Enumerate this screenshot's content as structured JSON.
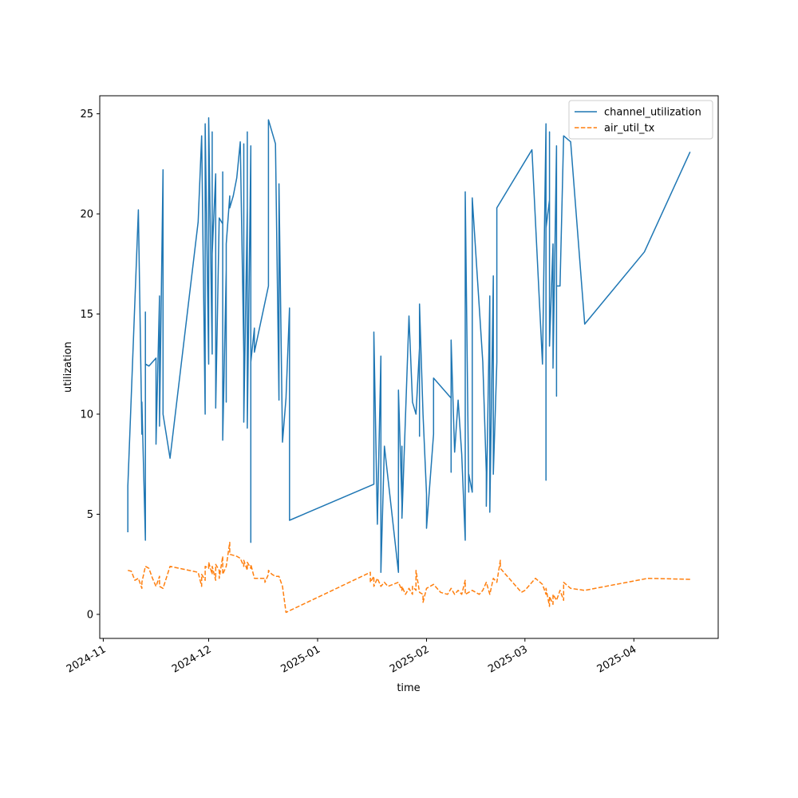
{
  "chart_data": {
    "type": "line",
    "title": "",
    "xlabel": "time",
    "ylabel": "utilization",
    "x_ticks": [
      "2024-11",
      "2024-12",
      "2025-01",
      "2025-02",
      "2025-03",
      "2025-04"
    ],
    "y_ticks": [
      "0",
      "5",
      "10",
      "15",
      "20",
      "25"
    ],
    "xlim": [
      "2024-10-31",
      "2025-04-25"
    ],
    "ylim": [
      -1.2,
      25.9
    ],
    "grid": false,
    "legend_position": "top-right",
    "series": [
      {
        "name": "channel_utilization",
        "color": "#1f77b4",
        "style": "solid",
        "points": [
          [
            "2024-11-08",
            4.1
          ],
          [
            "2024-11-08",
            6.4
          ],
          [
            "2024-11-11",
            20.2
          ],
          [
            "2024-11-12",
            9.0
          ],
          [
            "2024-11-12",
            10.6
          ],
          [
            "2024-11-13",
            3.7
          ],
          [
            "2024-11-13",
            3.8
          ],
          [
            "2024-11-13",
            15.1
          ],
          [
            "2024-11-13",
            12.5
          ],
          [
            "2024-11-14",
            12.4
          ],
          [
            "2024-11-16",
            12.8
          ],
          [
            "2024-11-16",
            8.5
          ],
          [
            "2024-11-17",
            15.9
          ],
          [
            "2024-11-17",
            9.4
          ],
          [
            "2024-11-18",
            22.2
          ],
          [
            "2024-11-18",
            10.0
          ],
          [
            "2024-11-20",
            7.8
          ],
          [
            "2024-11-28",
            19.6
          ],
          [
            "2024-11-29",
            23.9
          ],
          [
            "2024-11-30",
            10.0
          ],
          [
            "2024-11-30",
            24.5
          ],
          [
            "2024-12-01",
            12.5
          ],
          [
            "2024-12-01",
            24.8
          ],
          [
            "2024-12-02",
            13.0
          ],
          [
            "2024-12-02",
            24.1
          ],
          [
            "2024-12-02",
            18.0
          ],
          [
            "2024-12-03",
            22.0
          ],
          [
            "2024-12-03",
            15.5
          ],
          [
            "2024-12-03",
            21.8
          ],
          [
            "2024-12-03",
            10.3
          ],
          [
            "2024-12-04",
            19.8
          ],
          [
            "2024-12-05",
            19.5
          ],
          [
            "2024-12-05",
            10.5
          ],
          [
            "2024-12-05",
            22.1
          ],
          [
            "2024-12-05",
            8.7
          ],
          [
            "2024-12-06",
            17.2
          ],
          [
            "2024-12-06",
            17.4
          ],
          [
            "2024-12-06",
            10.6
          ],
          [
            "2024-12-06",
            18.5
          ],
          [
            "2024-12-07",
            20.9
          ],
          [
            "2024-12-07",
            20.3
          ],
          [
            "2024-12-08",
            20.9
          ],
          [
            "2024-12-09",
            21.8
          ],
          [
            "2024-12-10",
            23.6
          ],
          [
            "2024-12-11",
            13.0
          ],
          [
            "2024-12-11",
            23.5
          ],
          [
            "2024-12-11",
            9.6
          ],
          [
            "2024-12-12",
            20.3
          ],
          [
            "2024-12-12",
            14.7
          ],
          [
            "2024-12-12",
            24.1
          ],
          [
            "2024-12-12",
            9.3
          ],
          [
            "2024-12-13",
            23.3
          ],
          [
            "2024-12-13",
            3.6
          ],
          [
            "2024-12-13",
            23.4
          ],
          [
            "2024-12-13",
            12.6
          ],
          [
            "2024-12-14",
            14.3
          ],
          [
            "2024-12-14",
            13.1
          ],
          [
            "2024-12-18",
            16.4
          ],
          [
            "2024-12-18",
            24.7
          ],
          [
            "2024-12-20",
            23.5
          ],
          [
            "2024-12-21",
            10.7
          ],
          [
            "2024-12-21",
            21.5
          ],
          [
            "2024-12-22",
            8.6
          ],
          [
            "2024-12-23",
            10.8
          ],
          [
            "2024-12-24",
            15.3
          ],
          [
            "2024-12-24",
            4.7
          ],
          [
            "2025-01-17",
            6.5
          ],
          [
            "2025-01-17",
            14.1
          ],
          [
            "2025-01-18",
            4.5
          ],
          [
            "2025-01-19",
            12.9
          ],
          [
            "2025-01-19",
            2.1
          ],
          [
            "2025-01-20",
            8.4
          ],
          [
            "2025-01-24",
            2.1
          ],
          [
            "2025-01-24",
            11.2
          ],
          [
            "2025-01-25",
            5.5
          ],
          [
            "2025-01-25",
            8.4
          ],
          [
            "2025-01-25",
            4.8
          ],
          [
            "2025-01-27",
            14.9
          ],
          [
            "2025-01-28",
            10.6
          ],
          [
            "2025-01-29",
            10.0
          ],
          [
            "2025-01-30",
            13.3
          ],
          [
            "2025-01-30",
            8.9
          ],
          [
            "2025-01-30",
            15.5
          ],
          [
            "2025-01-31",
            10.0
          ],
          [
            "2025-02-01",
            6.0
          ],
          [
            "2025-02-01",
            4.3
          ],
          [
            "2025-02-03",
            9.0
          ],
          [
            "2025-02-03",
            11.8
          ],
          [
            "2025-02-07",
            11.0
          ],
          [
            "2025-02-08",
            10.8
          ],
          [
            "2025-02-08",
            7.1
          ],
          [
            "2025-02-08",
            13.7
          ],
          [
            "2025-02-09",
            8.1
          ],
          [
            "2025-02-10",
            10.7
          ],
          [
            "2025-02-11",
            8.0
          ],
          [
            "2025-02-12",
            3.7
          ],
          [
            "2025-02-12",
            21.1
          ],
          [
            "2025-02-13",
            6.1
          ],
          [
            "2025-02-13",
            7.0
          ],
          [
            "2025-02-14",
            6.1
          ],
          [
            "2025-02-14",
            20.8
          ],
          [
            "2025-02-17",
            12.6
          ],
          [
            "2025-02-18",
            7.1
          ],
          [
            "2025-02-18",
            5.4
          ],
          [
            "2025-02-19",
            15.9
          ],
          [
            "2025-02-19",
            5.1
          ],
          [
            "2025-02-20",
            16.9
          ],
          [
            "2025-02-20",
            7.0
          ],
          [
            "2025-02-21",
            12.6
          ],
          [
            "2025-02-21",
            19.4
          ],
          [
            "2025-02-21",
            18.6
          ],
          [
            "2025-02-21",
            20.3
          ],
          [
            "2025-03-03",
            23.2
          ],
          [
            "2025-03-06",
            12.5
          ],
          [
            "2025-03-07",
            24.5
          ],
          [
            "2025-03-07",
            6.7
          ],
          [
            "2025-03-07",
            19.3
          ],
          [
            "2025-03-08",
            20.7
          ],
          [
            "2025-03-08",
            15.3
          ],
          [
            "2025-03-08",
            24.1
          ],
          [
            "2025-03-08",
            13.4
          ],
          [
            "2025-03-09",
            18.5
          ],
          [
            "2025-03-09",
            12.3
          ],
          [
            "2025-03-10",
            23.4
          ],
          [
            "2025-03-10",
            10.9
          ],
          [
            "2025-03-10",
            16.4
          ],
          [
            "2025-03-11",
            16.4
          ],
          [
            "2025-03-12",
            23.9
          ],
          [
            "2025-03-14",
            23.6
          ],
          [
            "2025-03-18",
            14.5
          ],
          [
            "2025-04-04",
            18.1
          ],
          [
            "2025-04-17",
            23.1
          ]
        ]
      },
      {
        "name": "air_util_tx",
        "color": "#ff7f0e",
        "style": "dashed",
        "points": [
          [
            "2024-11-08",
            2.2
          ],
          [
            "2024-11-09",
            2.15
          ],
          [
            "2024-11-10",
            1.7
          ],
          [
            "2024-11-11",
            1.8
          ],
          [
            "2024-11-12",
            1.3
          ],
          [
            "2024-11-12",
            1.6
          ],
          [
            "2024-11-13",
            2.4
          ],
          [
            "2024-11-14",
            2.3
          ],
          [
            "2024-11-15",
            1.8
          ],
          [
            "2024-11-16",
            1.4
          ],
          [
            "2024-11-17",
            1.9
          ],
          [
            "2024-11-17",
            1.4
          ],
          [
            "2024-11-18",
            1.3
          ],
          [
            "2024-11-20",
            2.4
          ],
          [
            "2024-11-28",
            2.1
          ],
          [
            "2024-11-29",
            1.4
          ],
          [
            "2024-11-29",
            2.0
          ],
          [
            "2024-11-30",
            1.7
          ],
          [
            "2024-11-30",
            2.4
          ],
          [
            "2024-12-01",
            2.3
          ],
          [
            "2024-12-01",
            2.6
          ],
          [
            "2024-12-02",
            2.0
          ],
          [
            "2024-12-02",
            2.4
          ],
          [
            "2024-12-03",
            1.7
          ],
          [
            "2024-12-03",
            2.5
          ],
          [
            "2024-12-04",
            2.2
          ],
          [
            "2024-12-04",
            1.8
          ],
          [
            "2024-12-05",
            2.9
          ],
          [
            "2024-12-05",
            2.0
          ],
          [
            "2024-12-06",
            2.4
          ],
          [
            "2024-12-07",
            3.6
          ],
          [
            "2024-12-07",
            3.0
          ],
          [
            "2024-12-09",
            2.9
          ],
          [
            "2024-12-10",
            2.8
          ],
          [
            "2024-12-11",
            2.4
          ],
          [
            "2024-12-11",
            2.7
          ],
          [
            "2024-12-12",
            2.2
          ],
          [
            "2024-12-12",
            2.6
          ],
          [
            "2024-12-13",
            2.3
          ],
          [
            "2024-12-13",
            2.5
          ],
          [
            "2024-12-14",
            1.8
          ],
          [
            "2024-12-17",
            1.8
          ],
          [
            "2024-12-17",
            1.6
          ],
          [
            "2024-12-18",
            2.0
          ],
          [
            "2024-12-18",
            2.2
          ],
          [
            "2024-12-19",
            2.0
          ],
          [
            "2024-12-20",
            1.9
          ],
          [
            "2024-12-21",
            1.9
          ],
          [
            "2024-12-22",
            1.4
          ],
          [
            "2024-12-23",
            0.1
          ],
          [
            "2025-01-16",
            2.1
          ],
          [
            "2025-01-16",
            1.6
          ],
          [
            "2025-01-17",
            1.9
          ],
          [
            "2025-01-17",
            1.4
          ],
          [
            "2025-01-18",
            1.8
          ],
          [
            "2025-01-19",
            1.4
          ],
          [
            "2025-01-20",
            1.6
          ],
          [
            "2025-01-21",
            1.4
          ],
          [
            "2025-01-24",
            1.6
          ],
          [
            "2025-01-25",
            1.2
          ],
          [
            "2025-01-25",
            1.4
          ],
          [
            "2025-01-26",
            1.0
          ],
          [
            "2025-01-27",
            1.3
          ],
          [
            "2025-01-28",
            1.0
          ],
          [
            "2025-01-28",
            1.4
          ],
          [
            "2025-01-29",
            1.2
          ],
          [
            "2025-01-29",
            2.2
          ],
          [
            "2025-01-30",
            1.1
          ],
          [
            "2025-01-31",
            1.0
          ],
          [
            "2025-01-31",
            0.6
          ],
          [
            "2025-02-01",
            1.3
          ],
          [
            "2025-02-03",
            1.5
          ],
          [
            "2025-02-05",
            1.1
          ],
          [
            "2025-02-07",
            1.0
          ],
          [
            "2025-02-08",
            1.3
          ],
          [
            "2025-02-09",
            1.0
          ],
          [
            "2025-02-10",
            1.2
          ],
          [
            "2025-02-11",
            1.0
          ],
          [
            "2025-02-12",
            1.7
          ],
          [
            "2025-02-12",
            1.0
          ],
          [
            "2025-02-14",
            1.2
          ],
          [
            "2025-02-16",
            1.0
          ],
          [
            "2025-02-17",
            1.2
          ],
          [
            "2025-02-18",
            1.6
          ],
          [
            "2025-02-19",
            1.0
          ],
          [
            "2025-02-20",
            1.8
          ],
          [
            "2025-02-21",
            1.6
          ],
          [
            "2025-02-22",
            2.7
          ],
          [
            "2025-02-22",
            2.3
          ],
          [
            "2025-02-28",
            1.1
          ],
          [
            "2025-03-01",
            1.2
          ],
          [
            "2025-03-04",
            1.8
          ],
          [
            "2025-03-06",
            1.5
          ],
          [
            "2025-03-07",
            1.0
          ],
          [
            "2025-03-07",
            1.3
          ],
          [
            "2025-03-08",
            0.4
          ],
          [
            "2025-03-08",
            0.9
          ],
          [
            "2025-03-09",
            0.5
          ],
          [
            "2025-03-09",
            1.0
          ],
          [
            "2025-03-10",
            0.7
          ],
          [
            "2025-03-11",
            1.2
          ],
          [
            "2025-03-12",
            0.7
          ],
          [
            "2025-03-12",
            1.6
          ],
          [
            "2025-03-14",
            1.3
          ],
          [
            "2025-03-18",
            1.2
          ],
          [
            "2025-04-05",
            1.8
          ],
          [
            "2025-04-17",
            1.75
          ]
        ]
      }
    ]
  }
}
